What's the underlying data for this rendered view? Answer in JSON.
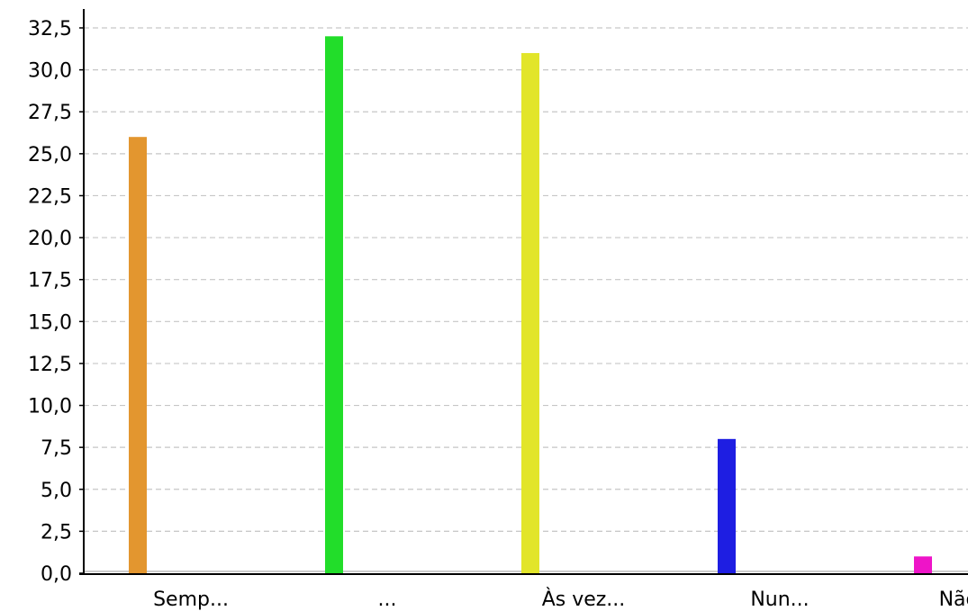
{
  "chart_data": {
    "type": "bar",
    "categories": [
      "Semp...",
      "...",
      "Às vez...",
      "Nun...",
      "Não s..."
    ],
    "values": [
      26,
      32,
      31,
      8,
      1
    ],
    "colors": [
      "#e3962f",
      "#22dd2a",
      "#e2e52a",
      "#1e1ee2",
      "#ee14c8"
    ],
    "ylim": [
      0,
      32.5
    ],
    "yticks": [
      "0,0",
      "2,5",
      "5,0",
      "7,5",
      "10,0",
      "12,5",
      "15,0",
      "17,5",
      "20,0",
      "22,5",
      "25,0",
      "27,5",
      "30,0",
      "32,5"
    ],
    "ytick_values": [
      0,
      2.5,
      5,
      7.5,
      10,
      12.5,
      15,
      17.5,
      20,
      22.5,
      25,
      27.5,
      30,
      32.5
    ],
    "grid": true,
    "title": "",
    "xlabel": "",
    "ylabel": ""
  }
}
